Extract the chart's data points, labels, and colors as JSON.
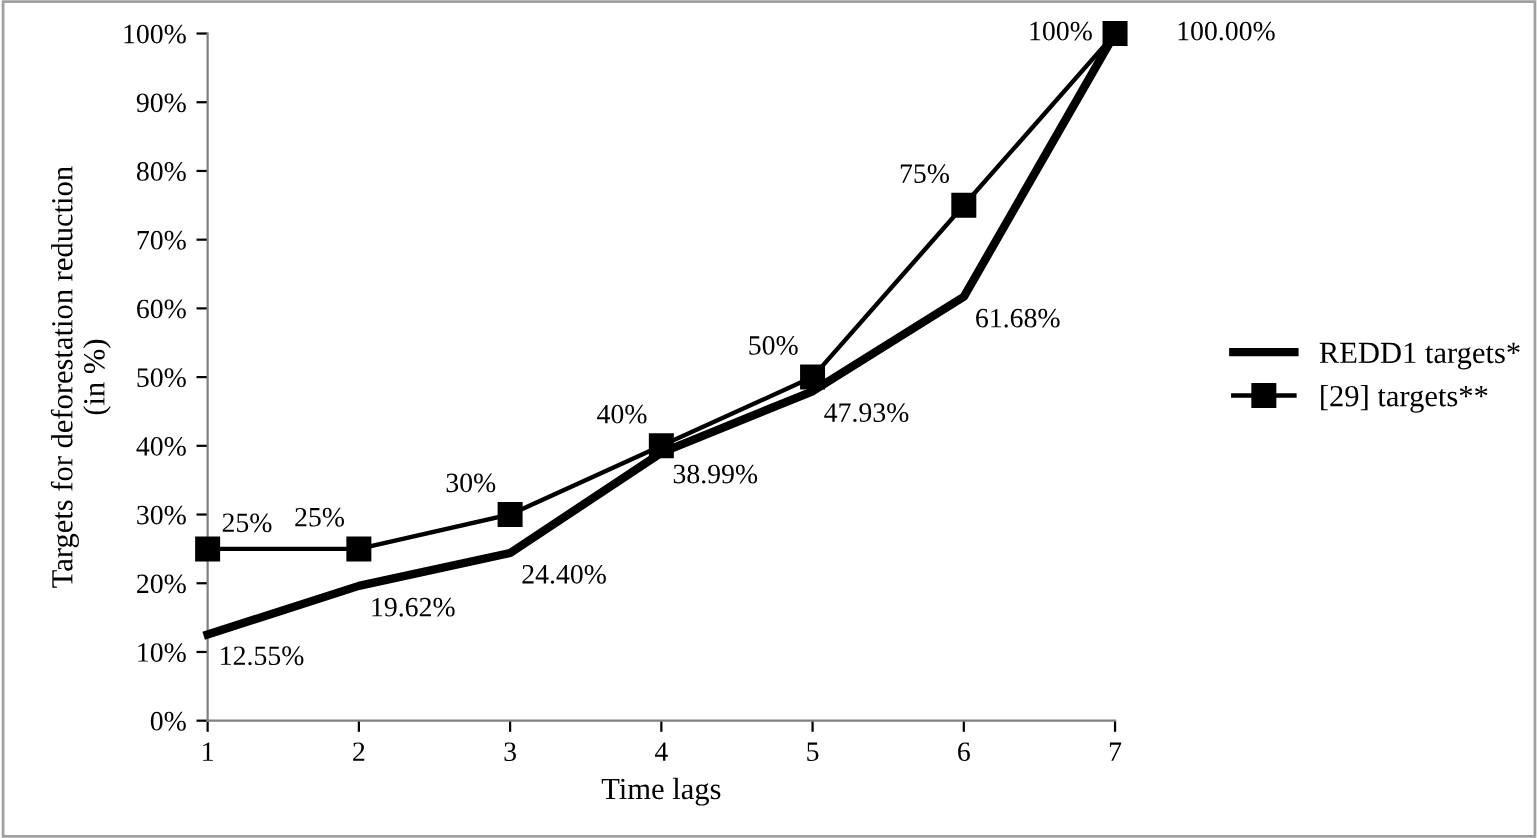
{
  "chart_data": {
    "type": "line",
    "xlabel": "Time lags",
    "ylabel": "Targets for deforestation reduction\n(in %)",
    "x": [
      1,
      2,
      3,
      4,
      5,
      6,
      7
    ],
    "series": [
      {
        "name": "REDD1 targets*",
        "color": "#000000",
        "marker": "none",
        "values": [
          12.55,
          19.62,
          24.4,
          38.99,
          47.93,
          61.68,
          100.0
        ],
        "value_labels": [
          "12.55%",
          "19.62%",
          "24.40%",
          "38.99%",
          "47.93%",
          "61.68%",
          "100.00%"
        ]
      },
      {
        "name": "[29] targets**",
        "color": "#000000",
        "marker": "square",
        "values": [
          25,
          25,
          30,
          40,
          50,
          75,
          100
        ],
        "value_labels": [
          "25%",
          "25%",
          "30%",
          "40%",
          "50%",
          "75%",
          "100%"
        ]
      }
    ],
    "xlim": [
      1,
      7
    ],
    "xticks": [
      1,
      2,
      3,
      4,
      5,
      6,
      7
    ],
    "ylim": [
      0,
      100
    ],
    "yticks": [
      {
        "value": 0,
        "label": "0%"
      },
      {
        "value": 10,
        "label": "10%"
      },
      {
        "value": 20,
        "label": "20%"
      },
      {
        "value": 30,
        "label": "30%"
      },
      {
        "value": 40,
        "label": "40%"
      },
      {
        "value": 50,
        "label": "50%"
      },
      {
        "value": 60,
        "label": "60%"
      },
      {
        "value": 70,
        "label": "70%"
      },
      {
        "value": 80,
        "label": "80%"
      },
      {
        "value": 90,
        "label": "90%"
      },
      {
        "value": 100,
        "label": "100%"
      }
    ],
    "grid": false,
    "legend": "right"
  }
}
